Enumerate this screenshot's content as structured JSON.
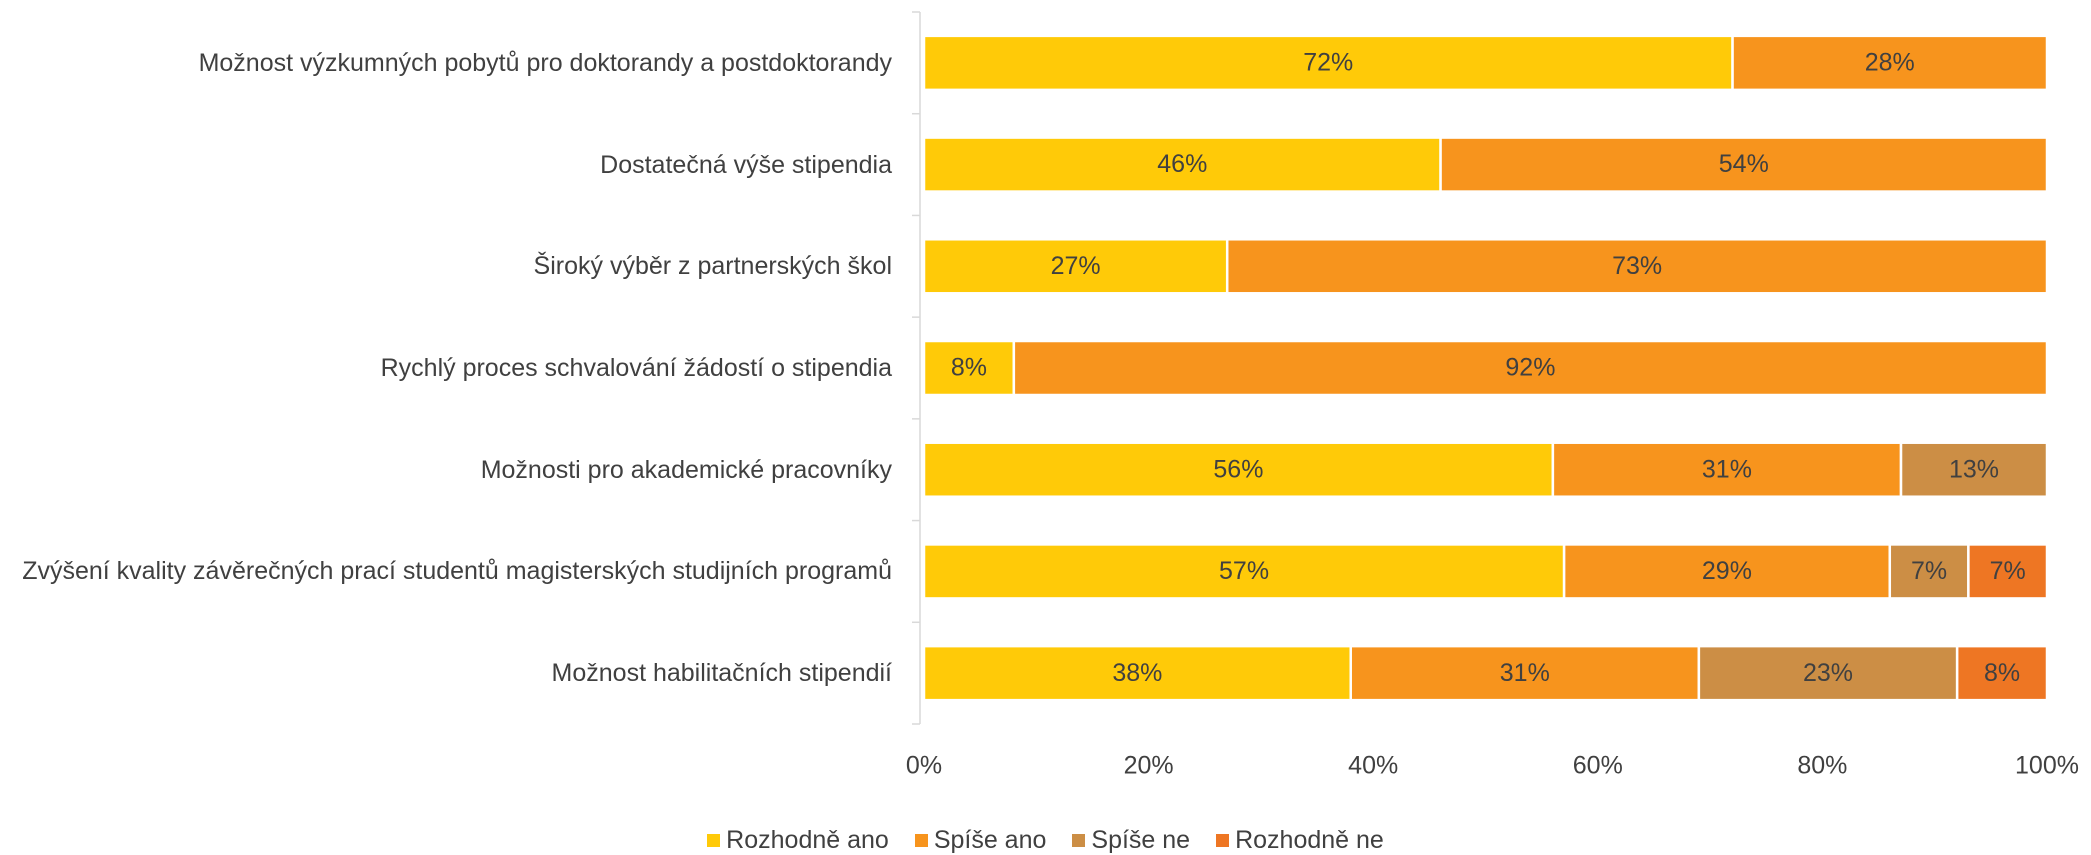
{
  "chart_data": {
    "type": "stacked_barh",
    "categories": [
      "Možnost výzkumných pobytů pro doktorandy a postdoktorandy",
      "Dostatečná výše stipendia",
      "Široký výběr z partnerských škol",
      "Rychlý proces schvalování žádostí o stipendia",
      "Možnosti pro akademické pracovníky",
      "Zvýšení kvality závěrečných prací studentů magisterských studijních programů",
      "Možnost habilitačních stipendií"
    ],
    "series": [
      {
        "name": "Rozhodně ano",
        "color": "#ffca08",
        "values": [
          72,
          46,
          27,
          8,
          56,
          57,
          38
        ],
        "value_labels": [
          "72%",
          "46%",
          "27%",
          "8%",
          "56%",
          "57%",
          "38%"
        ]
      },
      {
        "name": "Spíše ano",
        "color": "#f7941d",
        "values": [
          28,
          54,
          73,
          92,
          31,
          29,
          31
        ],
        "value_labels": [
          "28%",
          "54%",
          "73%",
          "92%",
          "31%",
          "29%",
          "31%"
        ]
      },
      {
        "name": "Spíše ne",
        "color": "#cc8e45",
        "values": [
          null,
          null,
          null,
          null,
          13,
          7,
          23
        ],
        "value_labels": [
          null,
          null,
          null,
          null,
          "13%",
          "7%",
          "23%"
        ]
      },
      {
        "name": "Rozhodně ne",
        "color": "#ee7623",
        "values": [
          null,
          null,
          null,
          null,
          null,
          7,
          8
        ],
        "value_labels": [
          null,
          null,
          null,
          null,
          null,
          "7%",
          "8%"
        ]
      }
    ],
    "xlim": [
      0,
      100
    ],
    "xticks": [
      {
        "value": 0,
        "label": "0%"
      },
      {
        "value": 20,
        "label": "20%"
      },
      {
        "value": 40,
        "label": "40%"
      },
      {
        "value": 60,
        "label": "60%"
      },
      {
        "value": 80,
        "label": "80%"
      },
      {
        "value": 100,
        "label": "100%"
      }
    ],
    "legend": "bottom"
  }
}
